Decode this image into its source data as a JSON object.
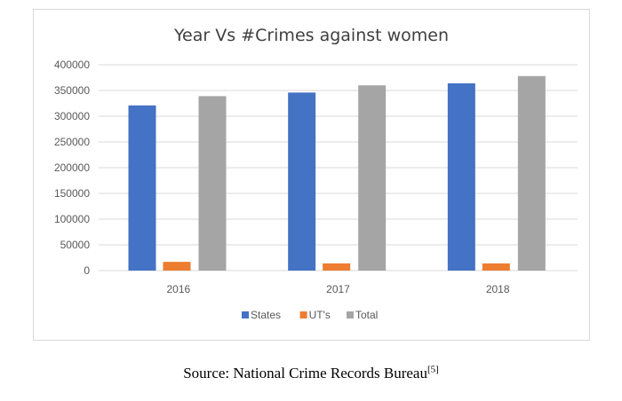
{
  "chart_data": {
    "type": "bar",
    "title": "Year Vs #Crimes against women",
    "categories": [
      "2016",
      "2017",
      "2018"
    ],
    "series": [
      {
        "name": "States",
        "color": "#4472c4",
        "values": [
          321000,
          346000,
          364000
        ]
      },
      {
        "name": "UT's",
        "color": "#ed7d31",
        "values": [
          17000,
          14000,
          14000
        ]
      },
      {
        "name": "Total",
        "color": "#a5a5a5",
        "values": [
          339000,
          360000,
          378000
        ]
      }
    ],
    "ylim": [
      0,
      400000
    ],
    "yticks": [
      "0",
      "50000",
      "100000",
      "150000",
      "200000",
      "250000",
      "300000",
      "350000",
      "400000"
    ],
    "grid": true,
    "legend_position": "bottom"
  },
  "caption": {
    "text": "Source: National Crime Records Bureau",
    "ref": "[5]"
  }
}
